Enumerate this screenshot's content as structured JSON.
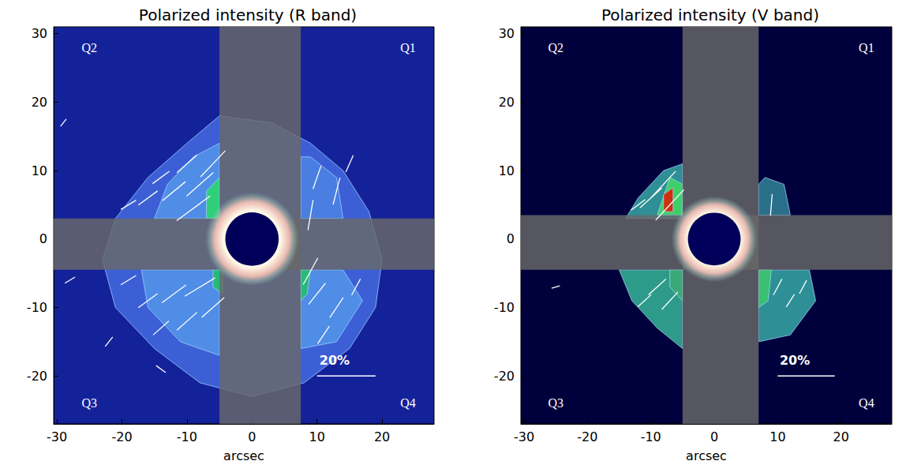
{
  "chart_data": [
    {
      "type": "polarization_map",
      "title": "Polarized intensity (R band)",
      "xlabel": "arcsec",
      "xlim": [
        -30.5,
        28
      ],
      "ylim": [
        -27,
        31
      ],
      "xticks": [
        -30,
        -20,
        -10,
        0,
        10,
        20
      ],
      "yticks": [
        -20,
        -10,
        0,
        10,
        20,
        30
      ],
      "grid": false,
      "background": "#14229a",
      "regions": [
        {
          "color": "#3d5fd6",
          "polygon": [
            [
              -5,
              18
            ],
            [
              -10,
              14
            ],
            [
              -16,
              9
            ],
            [
              -21,
              3
            ],
            [
              -23,
              -3
            ],
            [
              -21,
              -10
            ],
            [
              -15,
              -16
            ],
            [
              -8,
              -21
            ],
            [
              0,
              -23
            ],
            [
              8,
              -21
            ],
            [
              15,
              -16
            ],
            [
              19,
              -10
            ],
            [
              20,
              -3
            ],
            [
              18,
              4
            ],
            [
              14,
              10
            ],
            [
              9,
              14
            ],
            [
              3,
              17
            ]
          ]
        },
        {
          "color": "#4f8de6",
          "polygon": [
            [
              -5,
              14
            ],
            [
              -9,
              12
            ],
            [
              -13,
              8
            ],
            [
              -15,
              3
            ],
            [
              -5,
              3
            ]
          ]
        },
        {
          "color": "#4f8de6",
          "polygon": [
            [
              -5,
              -4.5
            ],
            [
              -17,
              -4.5
            ],
            [
              -16,
              -10
            ],
            [
              -11,
              -15
            ],
            [
              -5,
              -17
            ]
          ]
        },
        {
          "color": "#4f8de6",
          "polygon": [
            [
              7.5,
              -4.5
            ],
            [
              14,
              -4.5
            ],
            [
              17,
              -9
            ],
            [
              13,
              -15
            ],
            [
              7.5,
              -16
            ]
          ]
        },
        {
          "color": "#4a7ee0",
          "polygon": [
            [
              7.5,
              3
            ],
            [
              14,
              3
            ],
            [
              13,
              9
            ],
            [
              9,
              12
            ],
            [
              7.5,
              12
            ]
          ]
        },
        {
          "color": "#2fcf7a",
          "polygon": [
            [
              -7,
              3
            ],
            [
              -5,
              3
            ],
            [
              -5,
              9
            ],
            [
              -7,
              7
            ]
          ]
        },
        {
          "color": "#28b87a",
          "polygon": [
            [
              -6,
              -4.5
            ],
            [
              -4.5,
              -4.5
            ],
            [
              -4.5,
              -8
            ],
            [
              -6,
              -7
            ]
          ]
        },
        {
          "color": "#28b87a",
          "polygon": [
            [
              7.5,
              -4.5
            ],
            [
              9,
              -4.5
            ],
            [
              8.5,
              -8
            ],
            [
              7.5,
              -9
            ]
          ]
        }
      ],
      "occulter_bands": [
        [
          -5,
          -27,
          7.5,
          31
        ],
        [
          -30.5,
          -4.5,
          28,
          3
        ]
      ],
      "core_radius": 7,
      "mask_radius": 4,
      "vectors": [
        [
          -8,
          8,
          12,
          40
        ],
        [
          -12,
          7,
          10,
          38
        ],
        [
          -16,
          6,
          8,
          35
        ],
        [
          -10,
          11,
          9,
          40
        ],
        [
          -6,
          11,
          12,
          45
        ],
        [
          -14,
          9,
          7,
          35
        ],
        [
          -19,
          5,
          6,
          30
        ],
        [
          -9,
          4.5,
          14,
          35
        ],
        [
          -8,
          -7,
          12,
          30
        ],
        [
          -12,
          -8,
          10,
          35
        ],
        [
          -16,
          -9,
          8,
          35
        ],
        [
          -10,
          -12,
          9,
          40
        ],
        [
          -6,
          -10,
          10,
          40
        ],
        [
          -14,
          -13,
          7,
          40
        ],
        [
          -19,
          -6,
          6,
          30
        ],
        [
          -22,
          -15,
          4,
          50
        ],
        [
          10,
          9,
          8,
          70
        ],
        [
          13,
          7,
          9,
          75
        ],
        [
          9,
          3.5,
          10,
          80
        ],
        [
          15,
          11,
          6,
          65
        ],
        [
          10,
          -8,
          9,
          50
        ],
        [
          13,
          -10,
          8,
          55
        ],
        [
          11,
          -14,
          7,
          55
        ],
        [
          16,
          -7,
          6,
          60
        ],
        [
          9,
          -4.7,
          10,
          60
        ],
        [
          -29,
          17,
          3,
          50
        ],
        [
          -14,
          -19,
          4,
          -35
        ],
        [
          -28,
          -6,
          4,
          30
        ]
      ],
      "quadrant_labels": [
        {
          "text": "Q1",
          "x": 24,
          "y": 28
        },
        {
          "text": "Q2",
          "x": -25,
          "y": 28
        },
        {
          "text": "Q3",
          "x": -25,
          "y": -24
        },
        {
          "text": "Q4",
          "x": 24,
          "y": -24
        }
      ],
      "scale_bar": {
        "label": "20%",
        "value": 20,
        "x0": 10,
        "x1": 19,
        "y": -20
      }
    },
    {
      "type": "polarization_map",
      "title": "Polarized intensity (V band)",
      "xlabel": "arcsec",
      "xlim": [
        -30.5,
        28
      ],
      "ylim": [
        -27,
        31
      ],
      "xticks": [
        -30,
        -20,
        -10,
        0,
        10,
        20
      ],
      "yticks": [
        -20,
        -10,
        0,
        10,
        20,
        30
      ],
      "grid": false,
      "background": "#00003c",
      "regions": [
        {
          "color": "#2e8f96",
          "polygon": [
            [
              -5,
              11
            ],
            [
              -8,
              10
            ],
            [
              -12,
              6
            ],
            [
              -14,
              3
            ],
            [
              -5,
              3
            ]
          ]
        },
        {
          "color": "#2e9a8a",
          "polygon": [
            [
              -5,
              -4.5
            ],
            [
              -15,
              -4.5
            ],
            [
              -13,
              -9
            ],
            [
              -9,
              -13
            ],
            [
              -5,
              -16
            ]
          ]
        },
        {
          "color": "#2e8f96",
          "polygon": [
            [
              7,
              -4.5
            ],
            [
              15,
              -4.5
            ],
            [
              16,
              -9
            ],
            [
              12,
              -14
            ],
            [
              7,
              -15
            ]
          ]
        },
        {
          "color": "#2a6f8a",
          "polygon": [
            [
              7,
              3.5
            ],
            [
              12,
              3.5
            ],
            [
              11,
              8
            ],
            [
              8,
              9
            ],
            [
              7,
              8
            ]
          ]
        },
        {
          "color": "#3fcf6a",
          "polygon": [
            [
              -9,
              3.5
            ],
            [
              -5,
              3.5
            ],
            [
              -5,
              8
            ],
            [
              -7,
              9
            ]
          ]
        },
        {
          "color": "#d03010",
          "polygon": [
            [
              -8,
              4
            ],
            [
              -6.5,
              4
            ],
            [
              -6.5,
              7.5
            ],
            [
              -8,
              6.5
            ]
          ]
        },
        {
          "color": "#39c070",
          "polygon": [
            [
              7,
              -4.5
            ],
            [
              9,
              -4.5
            ],
            [
              8.5,
              -9
            ],
            [
              7,
              -10
            ]
          ]
        },
        {
          "color": "#3aa878",
          "polygon": [
            [
              -7,
              -4.5
            ],
            [
              -5,
              -4.5
            ],
            [
              -5,
              -9
            ],
            [
              -7,
              -7
            ]
          ]
        }
      ],
      "occulter_bands": [
        [
          -5,
          -27,
          7,
          31
        ],
        [
          -30.5,
          -4.5,
          28,
          3.5
        ]
      ],
      "core_radius": 6.5,
      "mask_radius": 4,
      "vectors": [
        [
          -8,
          8,
          12,
          45
        ],
        [
          -10,
          6,
          10,
          40
        ],
        [
          -7,
          5,
          14,
          45
        ],
        [
          -12,
          5,
          6,
          35
        ],
        [
          -9,
          -7,
          8,
          40
        ],
        [
          -11,
          -9,
          6,
          40
        ],
        [
          -7,
          -9,
          8,
          45
        ],
        [
          9,
          5,
          7,
          85
        ],
        [
          10,
          -7,
          6,
          60
        ],
        [
          12,
          -9,
          5,
          55
        ],
        [
          14,
          -7,
          5,
          60
        ],
        [
          -25,
          -7,
          3,
          15
        ]
      ],
      "quadrant_labels": [
        {
          "text": "Q1",
          "x": 24,
          "y": 28
        },
        {
          "text": "Q2",
          "x": -25,
          "y": 28
        },
        {
          "text": "Q3",
          "x": -25,
          "y": -24
        },
        {
          "text": "Q4",
          "x": 24,
          "y": -24
        }
      ],
      "scale_bar": {
        "label": "20%",
        "value": 20,
        "x0": 10,
        "x1": 19,
        "y": -20
      }
    }
  ]
}
